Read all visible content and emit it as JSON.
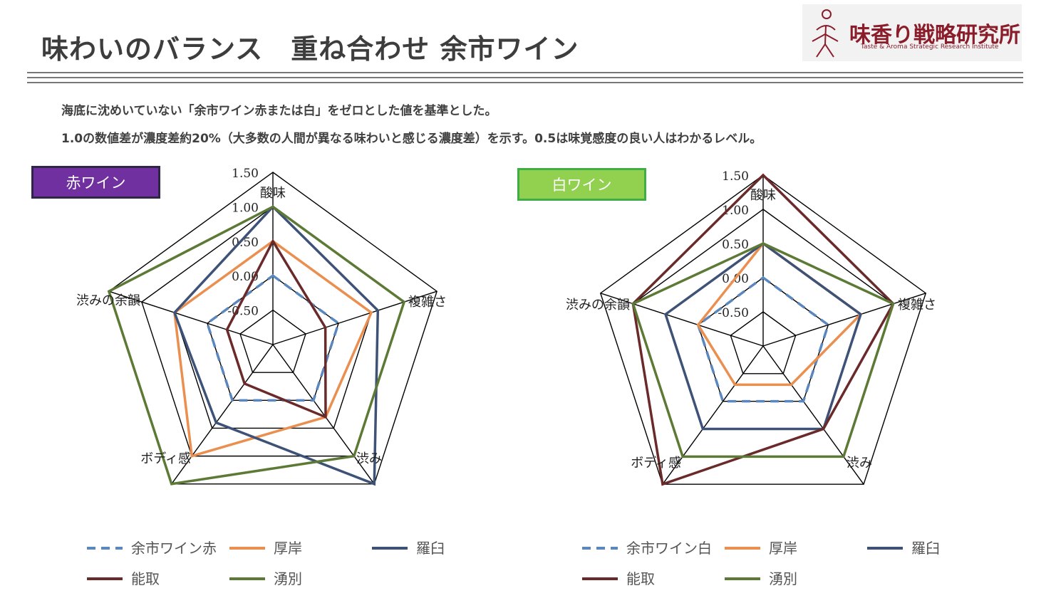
{
  "header": {
    "title": "味わいのバランス　重ね合わせ 余市ワイン",
    "logo_text": "味香り戦略研究所",
    "logo_subtext": "Taste & Aroma Strategic Research Institute"
  },
  "notes": [
    "海底に沈めいていない「余市ワイン赤または白」をゼロとした値を基準とした。",
    "1.0の数値差が濃度差約20%（大多数の人間が異なる味わいと感じる濃度差）を示す。0.5は味覚感度の良い人はわかるレベル。"
  ],
  "colors": {
    "余市ワイン": "#5b87bf",
    "厚岸": "#ea8f4f",
    "羅臼": "#3e5277",
    "能取": "#6a2a2a",
    "湧別": "#5c7a35"
  },
  "chart_data": [
    {
      "type": "radar",
      "badge": "赤ワイン",
      "badge_color": "#7030a0",
      "axes": [
        "酸味",
        "複雑さ",
        "渋み",
        "ボディ感",
        "渋みの余韻"
      ],
      "ticks": [
        "1.50",
        "1.00",
        "0.50",
        "0.00",
        "-0.50"
      ],
      "rlim": [
        -1.0,
        1.5
      ],
      "series": [
        {
          "name": "余市ワイン赤",
          "values": [
            0.0,
            0.0,
            0.0,
            0.0,
            0.0
          ],
          "dashed": true,
          "color_key": "余市ワイン"
        },
        {
          "name": "厚岸",
          "values": [
            0.5,
            0.5,
            0.3,
            1.0,
            0.5
          ],
          "color_key": "厚岸"
        },
        {
          "name": "羅臼",
          "values": [
            1.0,
            0.6,
            1.5,
            0.4,
            0.5
          ],
          "color_key": "羅臼"
        },
        {
          "name": "能取",
          "values": [
            0.5,
            -0.2,
            0.3,
            -0.3,
            -0.3
          ],
          "color_key": "能取"
        },
        {
          "name": "湧別",
          "values": [
            1.0,
            1.0,
            1.0,
            1.5,
            1.5
          ],
          "color_key": "湧別"
        }
      ]
    },
    {
      "type": "radar",
      "badge": "白ワイン",
      "badge_color": "#92d050",
      "axes": [
        "酸味",
        "複雑さ",
        "渋み",
        "ボディ感",
        "渋みの余韻"
      ],
      "ticks": [
        "1.50",
        "1.00",
        "0.50",
        "0.00",
        "-0.50"
      ],
      "rlim": [
        -1.0,
        1.5
      ],
      "series": [
        {
          "name": "余市ワイン白",
          "values": [
            0.0,
            0.0,
            0.0,
            0.0,
            0.0
          ],
          "dashed": true,
          "color_key": "余市ワイン"
        },
        {
          "name": "厚岸",
          "values": [
            0.5,
            0.5,
            -0.3,
            -0.3,
            0.0
          ],
          "color_key": "厚岸"
        },
        {
          "name": "羅臼",
          "values": [
            0.5,
            0.5,
            0.5,
            0.5,
            0.5
          ],
          "color_key": "羅臼"
        },
        {
          "name": "能取",
          "values": [
            1.5,
            1.0,
            0.5,
            1.5,
            1.0
          ],
          "color_key": "能取"
        },
        {
          "name": "湧別",
          "values": [
            0.5,
            1.0,
            1.0,
            1.0,
            1.0
          ],
          "color_key": "湧別"
        }
      ]
    }
  ]
}
